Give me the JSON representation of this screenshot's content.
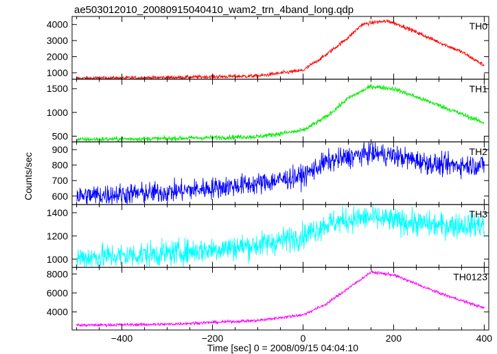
{
  "chart_data": {
    "type": "line",
    "title": "ae503012010_20080915040410_wam2_trn_4band_long.qdp",
    "xlabel": "Time [sec] 0 = 2008/09/15 04:04:10",
    "ylabel": "Counts/sec",
    "xlim": [
      -510,
      410
    ],
    "x_ticks": [
      -400,
      -200,
      0,
      200,
      400
    ],
    "x_tick_labels": [
      "−400",
      "−200",
      "0",
      "200",
      "400"
    ],
    "grid": false,
    "panels": [
      {
        "label": "TH0",
        "color": "#ff0000",
        "ylim": [
          600,
          4500
        ],
        "y_ticks": [
          1000,
          2000,
          3000,
          4000
        ],
        "y_tick_labels": [
          "1000",
          "2000",
          "3000",
          "4000"
        ],
        "noise": 60,
        "profile": [
          [
            -500,
            650
          ],
          [
            -300,
            700
          ],
          [
            -100,
            800
          ],
          [
            0,
            1150
          ],
          [
            50,
            2100
          ],
          [
            100,
            3200
          ],
          [
            130,
            4000
          ],
          [
            160,
            4150
          ],
          [
            190,
            4200
          ],
          [
            220,
            3900
          ],
          [
            300,
            2900
          ],
          [
            350,
            2300
          ],
          [
            400,
            1450
          ]
        ]
      },
      {
        "label": "TH1",
        "color": "#00ee00",
        "ylim": [
          380,
          1700
        ],
        "y_ticks": [
          500,
          1000,
          1500
        ],
        "y_tick_labels": [
          "500",
          "1000",
          "1500"
        ],
        "noise": 25,
        "profile": [
          [
            -500,
            430
          ],
          [
            -300,
            450
          ],
          [
            -100,
            490
          ],
          [
            0,
            620
          ],
          [
            50,
            900
          ],
          [
            100,
            1300
          ],
          [
            150,
            1550
          ],
          [
            200,
            1500
          ],
          [
            300,
            1150
          ],
          [
            400,
            780
          ]
        ]
      },
      {
        "label": "TH2",
        "color": "#0000ff",
        "ylim": [
          545,
          950
        ],
        "y_ticks": [
          600,
          700,
          800,
          900
        ],
        "y_tick_labels": [
          "600",
          "700",
          "800",
          "900"
        ],
        "noise": 35,
        "profile": [
          [
            -500,
            600
          ],
          [
            -300,
            625
          ],
          [
            -100,
            680
          ],
          [
            0,
            730
          ],
          [
            50,
            820
          ],
          [
            100,
            850
          ],
          [
            150,
            880
          ],
          [
            200,
            860
          ],
          [
            300,
            800
          ],
          [
            400,
            800
          ]
        ]
      },
      {
        "label": "TH3",
        "color": "#00ffff",
        "ylim": [
          930,
          1470
        ],
        "y_ticks": [
          1000,
          1200,
          1400
        ],
        "y_tick_labels": [
          "1000",
          "1200",
          "1400"
        ],
        "noise": 55,
        "profile": [
          [
            -500,
            1010
          ],
          [
            -300,
            1050
          ],
          [
            -100,
            1120
          ],
          [
            0,
            1200
          ],
          [
            50,
            1300
          ],
          [
            100,
            1340
          ],
          [
            150,
            1360
          ],
          [
            200,
            1330
          ],
          [
            300,
            1290
          ],
          [
            400,
            1300
          ]
        ]
      },
      {
        "label": "TH0123",
        "color": "#ff00ff",
        "ylim": [
          2100,
          8700
        ],
        "y_ticks": [
          4000,
          6000,
          8000
        ],
        "y_tick_labels": [
          "4000",
          "6000",
          "8000"
        ],
        "noise": 80,
        "profile": [
          [
            -500,
            2600
          ],
          [
            -300,
            2700
          ],
          [
            -100,
            3100
          ],
          [
            0,
            3700
          ],
          [
            50,
            4800
          ],
          [
            100,
            6500
          ],
          [
            150,
            8200
          ],
          [
            200,
            7900
          ],
          [
            300,
            6000
          ],
          [
            400,
            4400
          ]
        ]
      }
    ]
  }
}
